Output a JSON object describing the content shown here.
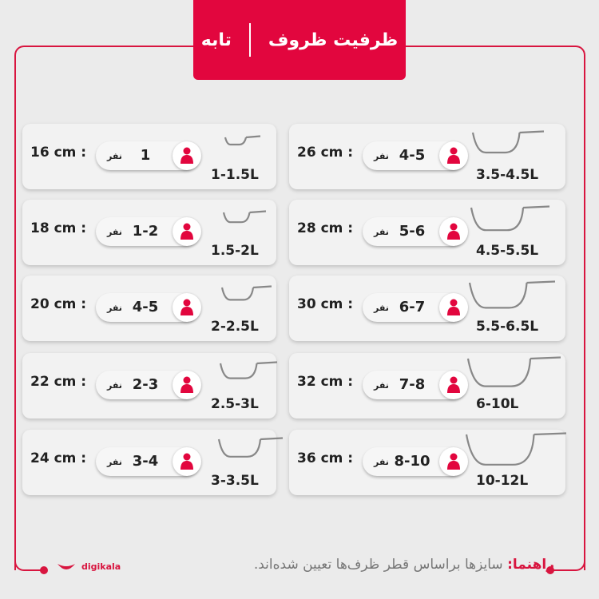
{
  "header": {
    "title": "ظرفیت ظروف",
    "subtitle": "تابه"
  },
  "colors": {
    "accent": "#e2063e",
    "pan_stroke": "#888888",
    "background": "#ebebeb"
  },
  "unit_label": "نفر",
  "left_column": [
    {
      "size": "16 cm :",
      "people": "1",
      "liters": "1-1.5L"
    },
    {
      "size": "18 cm :",
      "people": "1-2",
      "liters": "1.5-2L"
    },
    {
      "size": "20 cm :",
      "people": "4-5",
      "liters": "2-2.5L"
    },
    {
      "size": "22 cm :",
      "people": "2-3",
      "liters": "2.5-3L"
    },
    {
      "size": "24 cm :",
      "people": "3-4",
      "liters": "3-3.5L"
    }
  ],
  "right_column": [
    {
      "size": "26 cm :",
      "people": "4-5",
      "liters": "3.5-4.5L"
    },
    {
      "size": "28 cm :",
      "people": "5-6",
      "liters": "4.5-5.5L"
    },
    {
      "size": "30 cm :",
      "people": "6-7",
      "liters": "5.5-6.5L"
    },
    {
      "size": "32 cm :",
      "people": "7-8",
      "liters": "6-10L"
    },
    {
      "size": "36 cm :",
      "people": "8-10",
      "liters": "10-12L"
    }
  ],
  "footer": {
    "guide_label": "راهنما:",
    "guide_text": " سایزها براساس قطر ظرف‌ها تعیین شده‌اند.",
    "logo": "digikala"
  },
  "icons": {
    "person": "person-icon",
    "pan": "frying-pan-icon"
  }
}
